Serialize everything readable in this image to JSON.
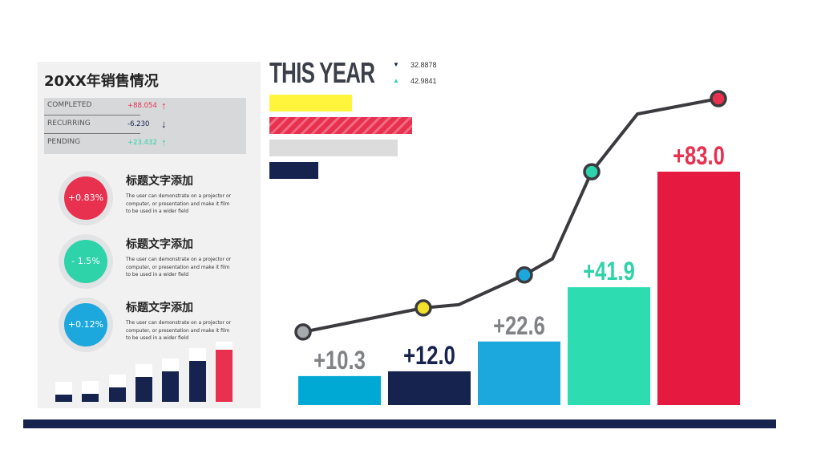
{
  "panel": {
    "title": "20XX年销售情况",
    "stats": [
      {
        "label": "COMPLETED",
        "value": "+88.054",
        "arrow": "↑",
        "color": "#e8304f"
      },
      {
        "label": "RECURRING",
        "value": "-6.230",
        "arrow": "↓",
        "color": "#15234e"
      },
      {
        "label": "PENDING",
        "value": "+23.432",
        "arrow": "↑",
        "color": "#2ed3a9"
      }
    ],
    "kpis": [
      {
        "value": "+0.83%",
        "color": "#e8304f",
        "title": "标题文字添加",
        "desc": "The user can demonstrate on a projector or computer, or presentation and make it film to be used in a wider field"
      },
      {
        "value": "- 1.5%",
        "color": "#2ed3a9",
        "title": "标题文字添加",
        "desc": "The user can demonstrate on a projector or computer, or presentation and make it film to be used in a wider field"
      },
      {
        "value": "+0.12%",
        "color": "#1ca8dc",
        "title": "标题文字添加",
        "desc": "The user can demonstrate on a projector or computer, or presentation and make it film to be used in a wider field"
      }
    ],
    "mini_chart": {
      "values": [
        0.14,
        0.16,
        0.27,
        0.48,
        0.58,
        0.78,
        1.0
      ],
      "colors": [
        "#15234e",
        "#15234e",
        "#15234e",
        "#15234e",
        "#15234e",
        "#15234e",
        "#e8304f"
      ]
    }
  },
  "header": {
    "title": "THIS YEAR",
    "legend": [
      {
        "marker": "▼",
        "value": "32.8878",
        "color": "#15234e"
      },
      {
        "marker": "▲",
        "value": "42.9841",
        "color": "#2ed3a9"
      }
    ]
  },
  "hbars": {
    "values": [
      0.58,
      1.0,
      0.9,
      0.34
    ],
    "colors": [
      "#fff53d",
      "#e8304f",
      "#dcdcdc",
      "#15234e"
    ]
  },
  "chart_data": {
    "type": "bar",
    "values": [
      10.3,
      12.0,
      22.6,
      41.9,
      83.0
    ],
    "labels": [
      "+10.3",
      "+12.0",
      "+22.6",
      "+41.9",
      "+83.0"
    ],
    "bar_colors": [
      "#00a9d4",
      "#15234e",
      "#1ca8dc",
      "#2edcb2",
      "#e61a40"
    ],
    "label_colors": [
      "#808285",
      "#15234e",
      "#808285",
      "#2ed3a9",
      "#e8304f"
    ],
    "line_markers": [
      {
        "color": "#a7a9ac"
      },
      {
        "color": "#f2e12b"
      },
      {
        "color": "#1ca8dc"
      },
      {
        "color": "#2ed3a9"
      },
      {
        "color": "#e8304f"
      }
    ],
    "trend_line_color": "#3b3b3f",
    "grid": false
  }
}
